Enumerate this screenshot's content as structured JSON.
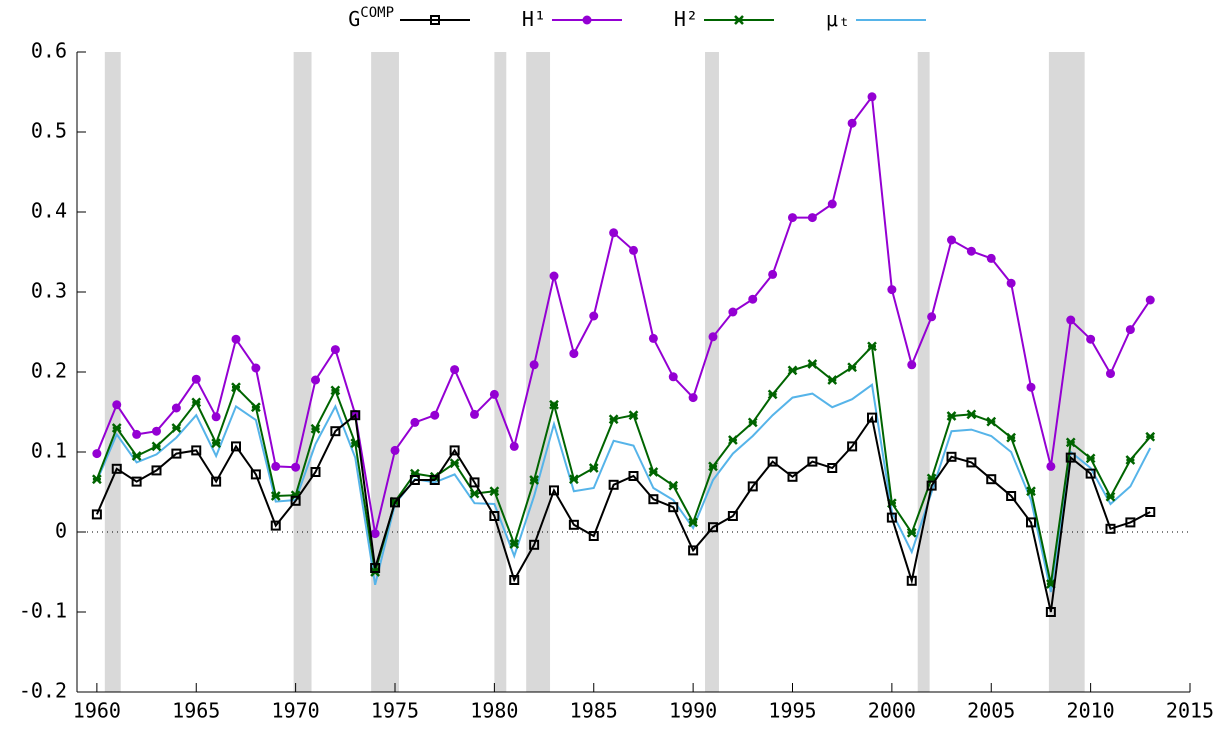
{
  "chart_data": {
    "type": "line",
    "x": [
      1960,
      1961,
      1962,
      1963,
      1964,
      1965,
      1966,
      1967,
      1968,
      1969,
      1970,
      1971,
      1972,
      1973,
      1974,
      1975,
      1976,
      1977,
      1978,
      1979,
      1980,
      1981,
      1982,
      1983,
      1984,
      1985,
      1986,
      1987,
      1988,
      1989,
      1990,
      1991,
      1992,
      1993,
      1994,
      1995,
      1996,
      1997,
      1998,
      1999,
      2000,
      2001,
      2002,
      2003,
      2004,
      2005,
      2006,
      2007,
      2008,
      2009,
      2010,
      2011,
      2012,
      2013
    ],
    "series": [
      {
        "name": "G",
        "superscript": "COMP",
        "color": "#000000",
        "marker": "square",
        "values": [
          0.022,
          0.079,
          0.063,
          0.077,
          0.098,
          0.102,
          0.063,
          0.107,
          0.072,
          0.008,
          0.039,
          0.075,
          0.126,
          0.146,
          -0.045,
          0.037,
          0.065,
          0.065,
          0.102,
          0.062,
          0.02,
          -0.06,
          -0.016,
          0.052,
          0.009,
          -0.005,
          0.059,
          0.07,
          0.041,
          0.031,
          -0.023,
          0.006,
          0.02,
          0.057,
          0.088,
          0.069,
          0.088,
          0.08,
          0.107,
          0.143,
          0.018,
          -0.061,
          0.058,
          0.094,
          0.087,
          0.066,
          0.045,
          0.012,
          -0.1,
          0.093,
          0.073,
          0.004,
          0.012,
          0.025
        ]
      },
      {
        "name": "H¹",
        "color": "#9400d3",
        "marker": "circle",
        "values": [
          0.098,
          0.159,
          0.122,
          0.126,
          0.155,
          0.191,
          0.144,
          0.241,
          0.205,
          0.082,
          0.081,
          0.19,
          0.228,
          0.147,
          -0.002,
          0.102,
          0.137,
          0.146,
          0.203,
          0.147,
          0.172,
          0.107,
          0.209,
          0.32,
          0.223,
          0.27,
          0.374,
          0.352,
          0.242,
          0.194,
          0.168,
          0.244,
          0.275,
          0.291,
          0.322,
          0.393,
          0.393,
          0.41,
          0.511,
          0.544,
          0.303,
          0.209,
          0.269,
          0.365,
          0.351,
          0.342,
          0.311,
          0.181,
          0.082,
          0.265,
          0.241,
          0.198,
          0.253,
          0.29
        ]
      },
      {
        "name": "H²",
        "color": "#006400",
        "marker": "cross",
        "values": [
          0.066,
          0.13,
          0.095,
          0.107,
          0.13,
          0.162,
          0.111,
          0.181,
          0.156,
          0.045,
          0.046,
          0.129,
          0.177,
          0.111,
          -0.05,
          0.038,
          0.073,
          0.069,
          0.086,
          0.048,
          0.051,
          -0.015,
          0.065,
          0.159,
          0.066,
          0.08,
          0.141,
          0.146,
          0.075,
          0.058,
          0.012,
          0.082,
          0.115,
          0.137,
          0.172,
          0.202,
          0.21,
          0.19,
          0.206,
          0.232,
          0.036,
          -0.001,
          0.067,
          0.145,
          0.147,
          0.138,
          0.118,
          0.051,
          -0.065,
          0.112,
          0.092,
          0.044,
          0.09,
          0.119
        ]
      },
      {
        "name": "μₜ",
        "color": "#56b4e9",
        "marker": "none",
        "values": [
          0.064,
          0.122,
          0.087,
          0.097,
          0.118,
          0.146,
          0.095,
          0.157,
          0.14,
          0.038,
          0.04,
          0.11,
          0.157,
          0.093,
          -0.066,
          0.035,
          0.066,
          0.062,
          0.072,
          0.036,
          0.035,
          -0.03,
          0.045,
          0.135,
          0.051,
          0.055,
          0.114,
          0.108,
          0.055,
          0.04,
          0.005,
          0.065,
          0.098,
          0.12,
          0.146,
          0.168,
          0.173,
          0.156,
          0.166,
          0.184,
          0.025,
          -0.025,
          0.05,
          0.126,
          0.128,
          0.12,
          0.1,
          0.04,
          -0.075,
          0.1,
          0.08,
          0.035,
          0.057,
          0.105
        ]
      }
    ],
    "recessions": [
      [
        1960.4,
        1961.2
      ],
      [
        1969.9,
        1970.8
      ],
      [
        1973.8,
        1975.2
      ],
      [
        1980.0,
        1980.6
      ],
      [
        1981.6,
        1982.8
      ],
      [
        1990.6,
        1991.3
      ],
      [
        2001.3,
        2001.9
      ],
      [
        2007.9,
        2009.7
      ]
    ],
    "recession_color": "#d9d9d9",
    "xlim": [
      1959,
      2015
    ],
    "xticks": [
      1960,
      1965,
      1970,
      1975,
      1980,
      1985,
      1990,
      1995,
      2000,
      2005,
      2010,
      2015
    ],
    "ylim": [
      -0.2,
      0.6
    ],
    "yticks": [
      -0.2,
      -0.1,
      0,
      0.1,
      0.2,
      0.3,
      0.4,
      0.5,
      0.6
    ],
    "zero_line": true,
    "legend": "top"
  }
}
